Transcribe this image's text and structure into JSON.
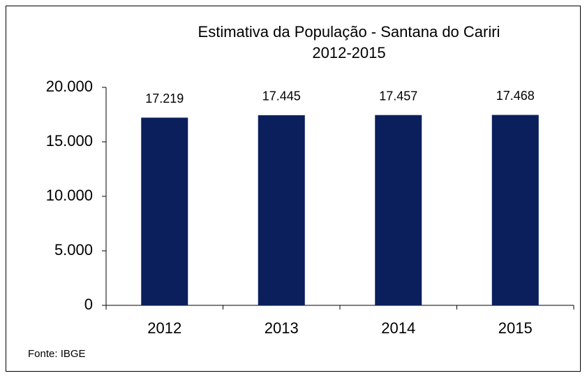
{
  "chart_data": {
    "type": "bar",
    "title": "Estimativa da População - Santana do Cariri",
    "subtitle": "2012-2015",
    "categories": [
      "2012",
      "2013",
      "2014",
      "2015"
    ],
    "values": [
      17219,
      17445,
      17457,
      17468
    ],
    "value_labels": [
      "17.219",
      "17.445",
      "17.457",
      "17.468"
    ],
    "color": "#0a1f5c",
    "ylim": [
      0,
      20000
    ],
    "yticks": [
      0,
      {
        "value": 5000,
        "label": "5.000"
      },
      {
        "value": 10000,
        "label": "10.000"
      },
      {
        "value": 15000,
        "label": "15.000"
      },
      {
        "value": 20000,
        "label": "20.000"
      }
    ],
    "grid": false,
    "source": "Fonte: IBGE"
  }
}
